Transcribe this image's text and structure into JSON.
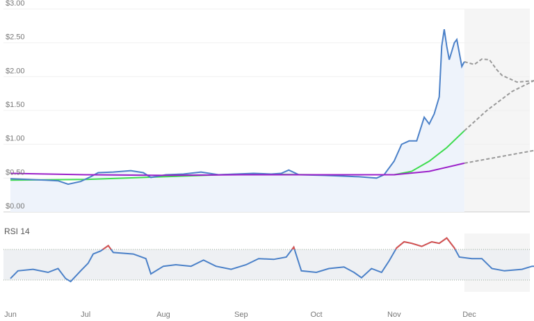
{
  "chart_data": [
    {
      "type": "line",
      "y_ticks": [
        "$0.00",
        "$0.50",
        "$1.00",
        "$1.50",
        "$2.00",
        "$2.50",
        "$3.00"
      ],
      "ylim": [
        0,
        3
      ],
      "x_ticks": [
        "Jun",
        "Jul",
        "Aug",
        "Sep",
        "Oct",
        "Nov",
        "Dec"
      ],
      "grid": true,
      "colors": {
        "price": "#4a80c8",
        "sma_short": "#3ddc4e",
        "sma_long": "#9b1fc9",
        "forecast": "#999999",
        "fill": "#eef3fb",
        "forecast_bg": "#f5f5f5"
      },
      "series": [
        {
          "key": "price",
          "points": [
            [
              "06-01",
              0.49
            ],
            [
              "06-08",
              0.48
            ],
            [
              "06-15",
              0.47
            ],
            [
              "06-20",
              0.46
            ],
            [
              "06-24",
              0.41
            ],
            [
              "06-29",
              0.45
            ],
            [
              "07-03",
              0.52
            ],
            [
              "07-06",
              0.58
            ],
            [
              "07-12",
              0.59
            ],
            [
              "07-19",
              0.61
            ],
            [
              "07-24",
              0.58
            ],
            [
              "07-27",
              0.51
            ],
            [
              "08-02",
              0.55
            ],
            [
              "08-09",
              0.56
            ],
            [
              "08-16",
              0.59
            ],
            [
              "08-23",
              0.55
            ],
            [
              "08-30",
              0.56
            ],
            [
              "09-06",
              0.57
            ],
            [
              "09-13",
              0.56
            ],
            [
              "09-17",
              0.57
            ],
            [
              "09-20",
              0.62
            ],
            [
              "09-24",
              0.55
            ],
            [
              "10-04",
              0.54
            ],
            [
              "10-11",
              0.53
            ],
            [
              "10-18",
              0.52
            ],
            [
              "10-25",
              0.5
            ],
            [
              "10-28",
              0.55
            ],
            [
              "11-01",
              0.75
            ],
            [
              "11-04",
              1.0
            ],
            [
              "11-07",
              1.05
            ],
            [
              "11-10",
              1.05
            ],
            [
              "11-13",
              1.4
            ],
            [
              "11-15",
              1.3
            ],
            [
              "11-17",
              1.45
            ],
            [
              "11-19",
              1.7
            ],
            [
              "11-20",
              2.45
            ],
            [
              "11-21",
              2.7
            ],
            [
              "11-22",
              2.45
            ],
            [
              "11-23",
              2.25
            ],
            [
              "11-25",
              2.5
            ],
            [
              "11-26",
              2.55
            ],
            [
              "11-28",
              2.15
            ],
            [
              "11-29",
              2.22
            ]
          ]
        },
        {
          "key": "price_forecast",
          "points": [
            [
              "11-29",
              2.22
            ],
            [
              "12-03",
              2.18
            ],
            [
              "12-06",
              2.26
            ],
            [
              "12-09",
              2.25
            ],
            [
              "12-12",
              2.1
            ],
            [
              "12-14",
              2.02
            ],
            [
              "12-20",
              1.92
            ],
            [
              "12-27",
              1.94
            ],
            [
              "12-30",
              2.04
            ]
          ]
        },
        {
          "key": "sma_short",
          "points": [
            [
              "06-01",
              0.47
            ],
            [
              "07-01",
              0.48
            ],
            [
              "08-01",
              0.52
            ],
            [
              "09-01",
              0.56
            ],
            [
              "10-01",
              0.55
            ],
            [
              "11-01",
              0.55
            ],
            [
              "11-08",
              0.6
            ],
            [
              "11-15",
              0.75
            ],
            [
              "11-22",
              0.95
            ],
            [
              "11-29",
              1.2
            ]
          ]
        },
        {
          "key": "sma_short_forecast",
          "points": [
            [
              "11-29",
              1.2
            ],
            [
              "12-08",
              1.5
            ],
            [
              "12-18",
              1.78
            ],
            [
              "12-30",
              2.0
            ]
          ]
        },
        {
          "key": "sma_long",
          "points": [
            [
              "06-01",
              0.57
            ],
            [
              "07-01",
              0.55
            ],
            [
              "08-01",
              0.54
            ],
            [
              "09-01",
              0.55
            ],
            [
              "10-01",
              0.55
            ],
            [
              "11-01",
              0.55
            ],
            [
              "11-15",
              0.6
            ],
            [
              "11-29",
              0.72
            ]
          ]
        },
        {
          "key": "sma_long_forecast",
          "points": [
            [
              "11-29",
              0.72
            ],
            [
              "12-30",
              0.93
            ]
          ]
        }
      ]
    },
    {
      "type": "line",
      "title": "RSI 14",
      "ylim": [
        0,
        100
      ],
      "levels": [
        30,
        70
      ],
      "colors": {
        "line": "#4a80c8",
        "overbought": "#d9534f",
        "band": "#eef0f3"
      },
      "points": [
        [
          "06-01",
          32
        ],
        [
          "06-04",
          42
        ],
        [
          "06-10",
          44
        ],
        [
          "06-16",
          40
        ],
        [
          "06-20",
          45
        ],
        [
          "06-23",
          32
        ],
        [
          "06-25",
          28
        ],
        [
          "06-29",
          42
        ],
        [
          "07-02",
          52
        ],
        [
          "07-04",
          64
        ],
        [
          "07-07",
          68
        ],
        [
          "07-10",
          75
        ],
        [
          "07-12",
          66
        ],
        [
          "07-20",
          64
        ],
        [
          "07-25",
          58
        ],
        [
          "07-27",
          38
        ],
        [
          "08-01",
          48
        ],
        [
          "08-06",
          50
        ],
        [
          "08-12",
          48
        ],
        [
          "08-17",
          56
        ],
        [
          "08-22",
          48
        ],
        [
          "08-28",
          44
        ],
        [
          "09-03",
          50
        ],
        [
          "09-08",
          58
        ],
        [
          "09-14",
          57
        ],
        [
          "09-19",
          60
        ],
        [
          "09-22",
          73
        ],
        [
          "09-25",
          42
        ],
        [
          "10-01",
          40
        ],
        [
          "10-06",
          45
        ],
        [
          "10-12",
          47
        ],
        [
          "10-16",
          40
        ],
        [
          "10-19",
          33
        ],
        [
          "10-23",
          45
        ],
        [
          "10-27",
          40
        ],
        [
          "10-30",
          55
        ],
        [
          "11-02",
          72
        ],
        [
          "11-05",
          80
        ],
        [
          "11-08",
          78
        ],
        [
          "11-12",
          74
        ],
        [
          "11-16",
          80
        ],
        [
          "11-19",
          78
        ],
        [
          "11-22",
          85
        ],
        [
          "11-25",
          72
        ],
        [
          "11-27",
          60
        ],
        [
          "12-02",
          58
        ],
        [
          "12-06",
          58
        ],
        [
          "12-10",
          45
        ],
        [
          "12-15",
          42
        ],
        [
          "12-22",
          44
        ],
        [
          "12-26",
          48
        ],
        [
          "12-30",
          48
        ]
      ]
    }
  ]
}
